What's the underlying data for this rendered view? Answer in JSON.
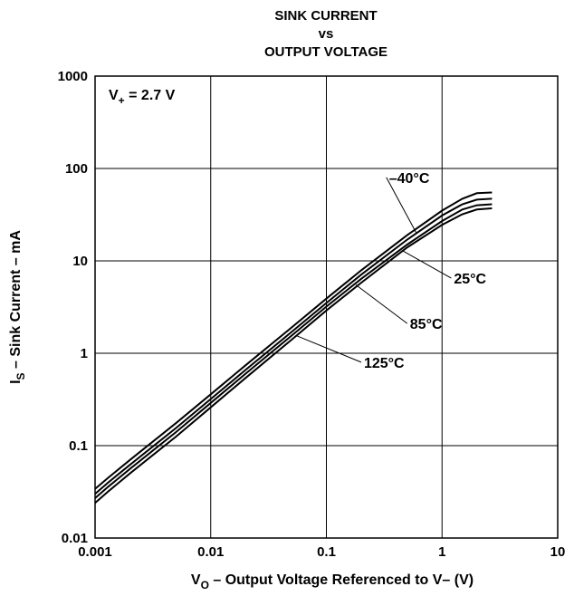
{
  "chart_data": {
    "type": "line",
    "title": [
      "SINK CURRENT",
      "vs",
      "OUTPUT VOLTAGE"
    ],
    "xlabel": {
      "main": "V",
      "sub": "O",
      "rest": " – Output Voltage Referenced to V– (V)"
    },
    "ylabel": {
      "main": "I",
      "sub": "S",
      "rest": " – Sink Current – mA"
    },
    "x_scale": "log",
    "y_scale": "log",
    "xlim": [
      0.001,
      10
    ],
    "ylim": [
      0.01,
      1000
    ],
    "grid": true,
    "x_ticks": [
      {
        "value": 0.001,
        "label": "0.001"
      },
      {
        "value": 0.01,
        "label": "0.01"
      },
      {
        "value": 0.1,
        "label": "0.1"
      },
      {
        "value": 1,
        "label": "1"
      },
      {
        "value": 10,
        "label": "10"
      }
    ],
    "y_ticks": [
      {
        "value": 0.01,
        "label": "0.01"
      },
      {
        "value": 0.1,
        "label": "0.1"
      },
      {
        "value": 1,
        "label": "1"
      },
      {
        "value": 10,
        "label": "10"
      },
      {
        "value": 100,
        "label": "100"
      },
      {
        "value": 1000,
        "label": "1000"
      }
    ],
    "condition": {
      "main": "V",
      "sub": "+",
      "rest": " = 2.7 V"
    },
    "series": [
      {
        "name": "–40°C",
        "x": [
          0.001,
          0.0013,
          0.002,
          0.003,
          0.005,
          0.01,
          0.02,
          0.05,
          0.1,
          0.2,
          0.5,
          1,
          1.5,
          2,
          2.7
        ],
        "y": [
          0.034,
          0.045,
          0.07,
          0.105,
          0.175,
          0.36,
          0.74,
          1.9,
          3.9,
          7.9,
          19,
          35,
          47,
          54,
          55
        ]
      },
      {
        "name": "25°C",
        "x": [
          0.001,
          0.0013,
          0.002,
          0.003,
          0.005,
          0.01,
          0.02,
          0.05,
          0.1,
          0.2,
          0.5,
          1,
          1.5,
          2,
          2.7
        ],
        "y": [
          0.03,
          0.04,
          0.062,
          0.093,
          0.155,
          0.32,
          0.66,
          1.7,
          3.5,
          7.1,
          17,
          31,
          41,
          46,
          47
        ]
      },
      {
        "name": "85°C",
        "x": [
          0.001,
          0.0013,
          0.002,
          0.003,
          0.005,
          0.01,
          0.02,
          0.05,
          0.1,
          0.2,
          0.5,
          1,
          1.5,
          2,
          2.7
        ],
        "y": [
          0.027,
          0.036,
          0.056,
          0.084,
          0.14,
          0.29,
          0.6,
          1.55,
          3.2,
          6.4,
          15,
          27,
          36,
          40,
          41
        ]
      },
      {
        "name": "125°C",
        "x": [
          0.001,
          0.0013,
          0.002,
          0.003,
          0.005,
          0.01,
          0.02,
          0.05,
          0.1,
          0.2,
          0.5,
          1,
          1.5,
          2,
          2.7
        ],
        "y": [
          0.024,
          0.032,
          0.05,
          0.075,
          0.125,
          0.26,
          0.54,
          1.4,
          2.9,
          5.8,
          14,
          24.5,
          32,
          36,
          37
        ]
      }
    ],
    "annotations": [
      {
        "text": "–40°C",
        "series": "–40°C",
        "anchor_x": 0.6,
        "anchor_y": 20,
        "label_x": 0.33,
        "label_y": 80
      },
      {
        "text": "25°C",
        "series": "25°C",
        "anchor_x": 0.45,
        "anchor_y": 13,
        "label_x": 1.2,
        "label_y": 6.5
      },
      {
        "text": "85°C",
        "series": "85°C",
        "anchor_x": 0.18,
        "anchor_y": 5.5,
        "label_x": 0.5,
        "label_y": 2.1
      },
      {
        "text": "125°C",
        "series": "125°C",
        "anchor_x": 0.055,
        "anchor_y": 1.55,
        "label_x": 0.2,
        "label_y": 0.8
      }
    ]
  }
}
